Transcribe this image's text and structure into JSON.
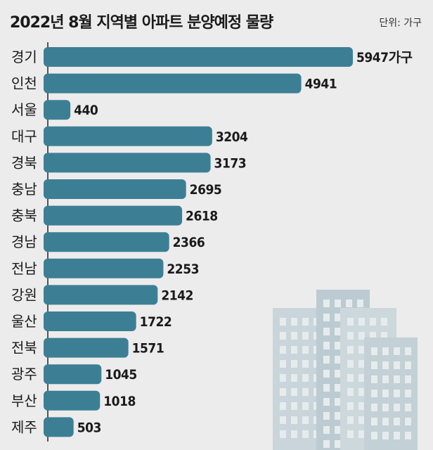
{
  "chart_data": {
    "type": "bar",
    "orientation": "horizontal",
    "title": "2022년 8월 지역별 아파트 분양예정 물량",
    "unit_label": "단위: 가구",
    "value_suffix_first": "가구",
    "categories": [
      "경기",
      "인천",
      "서울",
      "대구",
      "경북",
      "충남",
      "충북",
      "경남",
      "전남",
      "강원",
      "울산",
      "전북",
      "광주",
      "부산",
      "제주"
    ],
    "values": [
      5947,
      4941,
      440,
      3204,
      3173,
      2695,
      2618,
      2366,
      2253,
      2142,
      1722,
      1571,
      1045,
      1018,
      503
    ],
    "bar_color": "#3c7f95",
    "axis_color": "#222222",
    "xlim": [
      0,
      5947
    ],
    "grid": false,
    "legend": "none"
  }
}
